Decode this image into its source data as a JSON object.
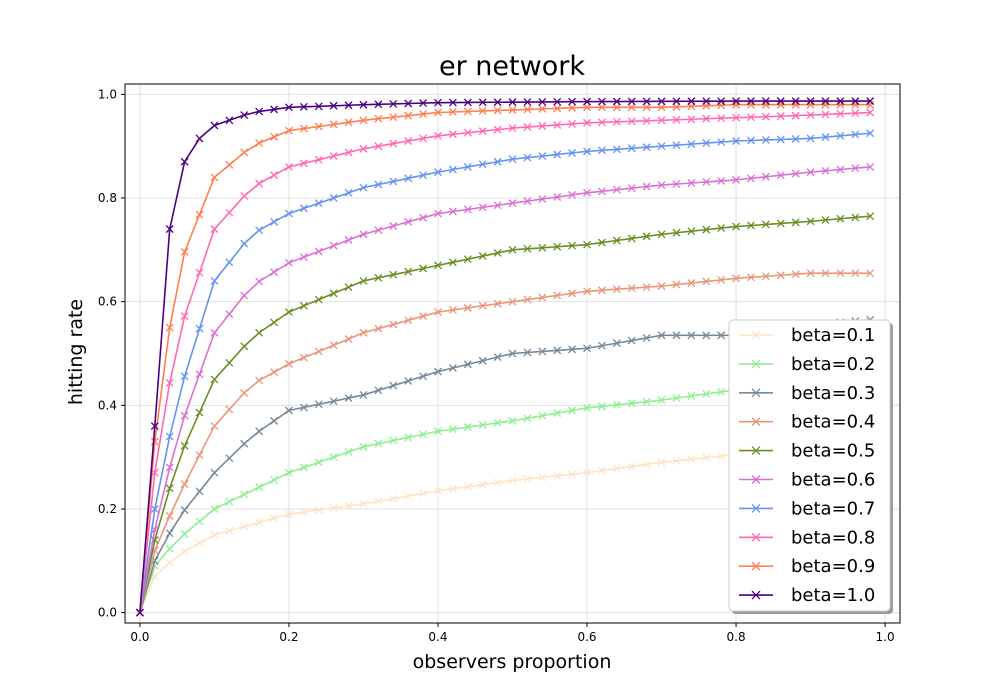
{
  "chart_data": {
    "type": "line",
    "title": "er network",
    "xlabel": "observers proportion",
    "ylabel": "hitting rate",
    "xlim": [
      -0.02,
      1.02
    ],
    "ylim": [
      -0.02,
      1.02
    ],
    "xticks": [
      "0.0",
      "0.2",
      "0.4",
      "0.6",
      "0.8",
      "1.0"
    ],
    "yticks": [
      "0.0",
      "0.2",
      "0.4",
      "0.6",
      "0.8",
      "1.0"
    ],
    "grid": true,
    "legend_position": "lower-right",
    "marker": "x",
    "x_start": 0.0,
    "x_step": 0.02,
    "x_end": 0.98,
    "series": [
      {
        "name": "beta=0.1",
        "color": "#ffe4c4",
        "anchors": [
          [
            0,
            0.0
          ],
          [
            0.02,
            0.07
          ],
          [
            0.05,
            0.11
          ],
          [
            0.1,
            0.15
          ],
          [
            0.2,
            0.19
          ],
          [
            0.3,
            0.21
          ],
          [
            0.4,
            0.235
          ],
          [
            0.5,
            0.255
          ],
          [
            0.6,
            0.27
          ],
          [
            0.7,
            0.29
          ],
          [
            0.8,
            0.305
          ],
          [
            0.9,
            0.32
          ],
          [
            0.98,
            0.33
          ]
        ]
      },
      {
        "name": "beta=0.2",
        "color": "#90ee90",
        "anchors": [
          [
            0,
            0.0
          ],
          [
            0.02,
            0.09
          ],
          [
            0.05,
            0.14
          ],
          [
            0.1,
            0.2
          ],
          [
            0.2,
            0.27
          ],
          [
            0.3,
            0.32
          ],
          [
            0.4,
            0.35
          ],
          [
            0.5,
            0.37
          ],
          [
            0.6,
            0.395
          ],
          [
            0.7,
            0.41
          ],
          [
            0.8,
            0.43
          ],
          [
            0.9,
            0.44
          ],
          [
            0.98,
            0.45
          ]
        ]
      },
      {
        "name": "beta=0.3",
        "color": "#778899",
        "anchors": [
          [
            0,
            0.0
          ],
          [
            0.02,
            0.1
          ],
          [
            0.05,
            0.18
          ],
          [
            0.1,
            0.27
          ],
          [
            0.15,
            0.34
          ],
          [
            0.2,
            0.39
          ],
          [
            0.3,
            0.42
          ],
          [
            0.4,
            0.465
          ],
          [
            0.5,
            0.5
          ],
          [
            0.6,
            0.51
          ],
          [
            0.7,
            0.535
          ],
          [
            0.8,
            0.535
          ],
          [
            0.9,
            0.555
          ],
          [
            0.98,
            0.565
          ]
        ]
      },
      {
        "name": "beta=0.4",
        "color": "#e9967a",
        "anchors": [
          [
            0,
            0.0
          ],
          [
            0.02,
            0.12
          ],
          [
            0.05,
            0.22
          ],
          [
            0.1,
            0.36
          ],
          [
            0.15,
            0.44
          ],
          [
            0.2,
            0.48
          ],
          [
            0.3,
            0.54
          ],
          [
            0.4,
            0.58
          ],
          [
            0.5,
            0.6
          ],
          [
            0.6,
            0.62
          ],
          [
            0.7,
            0.63
          ],
          [
            0.8,
            0.645
          ],
          [
            0.9,
            0.655
          ],
          [
            0.98,
            0.655
          ]
        ]
      },
      {
        "name": "beta=0.5",
        "color": "#6b8e23",
        "anchors": [
          [
            0,
            0.0
          ],
          [
            0.02,
            0.14
          ],
          [
            0.05,
            0.29
          ],
          [
            0.1,
            0.45
          ],
          [
            0.15,
            0.53
          ],
          [
            0.2,
            0.58
          ],
          [
            0.3,
            0.64
          ],
          [
            0.4,
            0.67
          ],
          [
            0.5,
            0.7
          ],
          [
            0.6,
            0.71
          ],
          [
            0.7,
            0.73
          ],
          [
            0.8,
            0.745
          ],
          [
            0.9,
            0.755
          ],
          [
            0.98,
            0.765
          ]
        ]
      },
      {
        "name": "beta=0.6",
        "color": "#da70d6",
        "anchors": [
          [
            0,
            0.0
          ],
          [
            0.02,
            0.16
          ],
          [
            0.05,
            0.34
          ],
          [
            0.1,
            0.54
          ],
          [
            0.15,
            0.63
          ],
          [
            0.2,
            0.675
          ],
          [
            0.3,
            0.73
          ],
          [
            0.4,
            0.77
          ],
          [
            0.5,
            0.79
          ],
          [
            0.6,
            0.81
          ],
          [
            0.7,
            0.825
          ],
          [
            0.8,
            0.835
          ],
          [
            0.9,
            0.85
          ],
          [
            0.98,
            0.86
          ]
        ]
      },
      {
        "name": "beta=0.7",
        "color": "#6495ed",
        "anchors": [
          [
            0,
            0.0
          ],
          [
            0.02,
            0.2
          ],
          [
            0.05,
            0.41
          ],
          [
            0.1,
            0.64
          ],
          [
            0.15,
            0.73
          ],
          [
            0.2,
            0.77
          ],
          [
            0.3,
            0.82
          ],
          [
            0.4,
            0.85
          ],
          [
            0.5,
            0.875
          ],
          [
            0.6,
            0.89
          ],
          [
            0.7,
            0.9
          ],
          [
            0.8,
            0.91
          ],
          [
            0.9,
            0.915
          ],
          [
            0.98,
            0.925
          ]
        ]
      },
      {
        "name": "beta=0.8",
        "color": "#ff69b4",
        "anchors": [
          [
            0,
            0.0
          ],
          [
            0.02,
            0.27
          ],
          [
            0.05,
            0.53
          ],
          [
            0.1,
            0.74
          ],
          [
            0.15,
            0.82
          ],
          [
            0.2,
            0.86
          ],
          [
            0.3,
            0.895
          ],
          [
            0.4,
            0.92
          ],
          [
            0.5,
            0.935
          ],
          [
            0.6,
            0.945
          ],
          [
            0.7,
            0.95
          ],
          [
            0.8,
            0.955
          ],
          [
            0.9,
            0.96
          ],
          [
            0.98,
            0.965
          ]
        ]
      },
      {
        "name": "beta=0.9",
        "color": "#ff7f50",
        "anchors": [
          [
            0,
            0.0
          ],
          [
            0.02,
            0.33
          ],
          [
            0.05,
            0.66
          ],
          [
            0.1,
            0.84
          ],
          [
            0.15,
            0.9
          ],
          [
            0.2,
            0.93
          ],
          [
            0.3,
            0.95
          ],
          [
            0.4,
            0.965
          ],
          [
            0.5,
            0.97
          ],
          [
            0.6,
            0.975
          ],
          [
            0.7,
            0.975
          ],
          [
            0.8,
            0.98
          ],
          [
            0.98,
            0.98
          ]
        ]
      },
      {
        "name": "beta=1.0",
        "color": "#4b0082",
        "anchors": [
          [
            0,
            0.0
          ],
          [
            0.02,
            0.36
          ],
          [
            0.04,
            0.74
          ],
          [
            0.06,
            0.87
          ],
          [
            0.08,
            0.915
          ],
          [
            0.1,
            0.94
          ],
          [
            0.15,
            0.965
          ],
          [
            0.2,
            0.975
          ],
          [
            0.3,
            0.98
          ],
          [
            0.4,
            0.984
          ],
          [
            0.6,
            0.986
          ],
          [
            0.8,
            0.987
          ],
          [
            0.98,
            0.987
          ]
        ]
      }
    ]
  }
}
